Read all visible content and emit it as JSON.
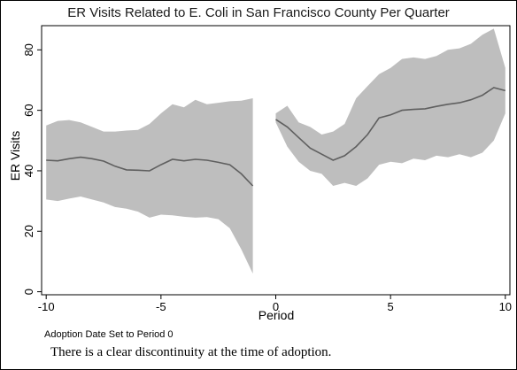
{
  "chart_data": {
    "type": "line",
    "title": "ER Visits Related to E. Coli in San Francisco County Per Quarter",
    "xlabel": "Period",
    "ylabel": "ER Visits",
    "xlim": [
      -10.2,
      10.2
    ],
    "ylim": [
      -1,
      88
    ],
    "xticks": [
      -10,
      -5,
      0,
      5,
      10
    ],
    "xtick_labels": [
      "-10",
      "-5",
      "0",
      "5",
      "10"
    ],
    "yticks": [
      0,
      20,
      40,
      60,
      80
    ],
    "ytick_labels": [
      "0",
      "20",
      "40",
      "60",
      "80"
    ],
    "grid": false,
    "colors": {
      "band": "#bebebe",
      "line": "#5f5f5f",
      "plot_bg": "#ffffff"
    },
    "series": [
      {
        "segment": "pre-adoption",
        "x": [
          -10,
          -9.5,
          -9,
          -8.5,
          -8,
          -7.5,
          -7,
          -6.5,
          -6,
          -5.5,
          -5,
          -4.5,
          -4,
          -3.5,
          -3,
          -2.5,
          -2,
          -1.5,
          -1
        ],
        "y": [
          43.5,
          43.3,
          44,
          44.5,
          44,
          43.2,
          41.5,
          40.3,
          40.2,
          40,
          42,
          43.8,
          43.3,
          43.8,
          43.5,
          42.8,
          42,
          39,
          35
        ],
        "upper": [
          55,
          56.5,
          56.8,
          56,
          54.5,
          53,
          53,
          53.3,
          53.5,
          55.5,
          59,
          62,
          61,
          63.5,
          62,
          62.5,
          63,
          63.2,
          64
        ],
        "lower": [
          30.5,
          30,
          30.8,
          31.5,
          30.5,
          29.5,
          28,
          27.5,
          26.5,
          24.5,
          25.5,
          25.3,
          24.8,
          24.5,
          24.7,
          24,
          21,
          14,
          6
        ]
      },
      {
        "segment": "post-adoption",
        "x": [
          0,
          0.5,
          1,
          1.5,
          2,
          2.5,
          3,
          3.5,
          4,
          4.5,
          5,
          5.5,
          6,
          6.5,
          7,
          7.5,
          8,
          8.5,
          9,
          9.5,
          10
        ],
        "y": [
          57,
          54.5,
          51,
          47.5,
          45.5,
          43.5,
          45,
          48,
          52,
          57.5,
          58.5,
          60,
          60.3,
          60.5,
          61.3,
          62,
          62.5,
          63.5,
          65,
          67.5,
          66.5
        ],
        "upper": [
          59,
          61.5,
          56,
          54.5,
          52,
          53,
          55.5,
          64,
          68,
          72,
          74,
          77,
          77.5,
          77,
          78,
          80,
          80.5,
          82,
          85,
          87,
          74
        ],
        "lower": [
          56,
          48,
          43,
          40,
          39,
          35,
          36,
          35,
          37.5,
          42,
          43,
          42.5,
          44,
          43.5,
          45,
          44.5,
          45.5,
          44.5,
          46,
          50,
          59
        ]
      }
    ]
  },
  "note": "Adoption Date Set to Period 0",
  "caption": "There is a clear discontinuity at the time of adoption."
}
